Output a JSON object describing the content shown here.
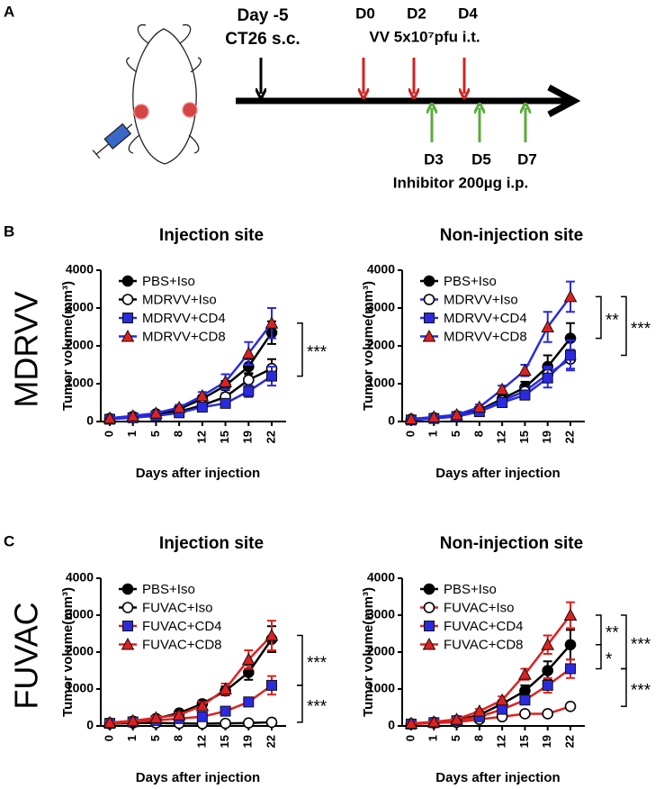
{
  "panels": [
    "A",
    "B",
    "C"
  ],
  "rows": [
    "MDRVV",
    "FUVAC"
  ],
  "timeline": {
    "day_minus5": "Day -5",
    "ct26": "CT26 s.c.",
    "d0": "D0",
    "d2": "D2",
    "d4": "D4",
    "vv": "VV 5x10⁷pfu i.t.",
    "d3": "D3",
    "d5": "D5",
    "d7": "D7",
    "inhibitor": "Inhibitor 200µg i.p."
  },
  "chart_data": [
    {
      "type": "line",
      "title": "Injection site",
      "x_label": "Days after injection",
      "y_label": "Tumor volume(mm³)",
      "categories": [
        "0",
        "1",
        "5",
        "8",
        "12",
        "15",
        "19",
        "22"
      ],
      "ylim": [
        0,
        4000
      ],
      "yticks": [
        0,
        1000,
        2000,
        3000,
        4000
      ],
      "annotations": [
        "***"
      ],
      "series": [
        {
          "name": "PBS+Iso",
          "color": "#000000",
          "marker": "circle",
          "marker_color": "#000000",
          "values": [
            80,
            130,
            200,
            330,
            600,
            950,
            1450,
            2350
          ],
          "errors": [
            20,
            30,
            40,
            60,
            90,
            120,
            200,
            300
          ]
        },
        {
          "name": "MDRVV+Iso",
          "color": "#000000",
          "marker": "circle-open",
          "marker_color": "#ffffff",
          "values": [
            70,
            110,
            170,
            260,
            430,
            650,
            1100,
            1400
          ],
          "errors": [
            20,
            30,
            40,
            50,
            80,
            100,
            180,
            250
          ]
        },
        {
          "name": "MDRVV+CD4",
          "color": "#2a2ae0",
          "marker": "square",
          "marker_color": "#2a2ae0",
          "values": [
            60,
            100,
            150,
            230,
            380,
            480,
            800,
            1200
          ],
          "errors": [
            20,
            30,
            40,
            50,
            70,
            90,
            150,
            250
          ]
        },
        {
          "name": "MDRVV+CD8",
          "color": "#2a2ae0",
          "marker": "triangle",
          "marker_color": "#e02020",
          "values": [
            90,
            150,
            220,
            370,
            680,
            1050,
            1800,
            2600
          ],
          "errors": [
            20,
            30,
            50,
            70,
            100,
            200,
            300,
            400
          ]
        }
      ]
    },
    {
      "type": "line",
      "title": "Non-injection site",
      "x_label": "Days after injection",
      "y_label": "Tumor volume(mm³)",
      "categories": [
        "0",
        "1",
        "5",
        "8",
        "12",
        "15",
        "19",
        "22"
      ],
      "ylim": [
        0,
        4000
      ],
      "yticks": [
        0,
        1000,
        2000,
        3000,
        4000
      ],
      "annotations": [
        "**",
        "***"
      ],
      "series": [
        {
          "name": "PBS+Iso",
          "color": "#000000",
          "marker": "circle",
          "marker_color": "#000000",
          "values": [
            60,
            100,
            150,
            300,
            600,
            900,
            1450,
            2200
          ],
          "errors": [
            20,
            30,
            40,
            60,
            90,
            150,
            300,
            400
          ]
        },
        {
          "name": "MDRVV+Iso",
          "color": "#2a2ae0",
          "marker": "circle-open",
          "marker_color": "#ffffff",
          "values": [
            50,
            90,
            140,
            280,
            550,
            800,
            1250,
            1650
          ],
          "errors": [
            20,
            30,
            40,
            60,
            80,
            120,
            200,
            250
          ]
        },
        {
          "name": "MDRVV+CD4",
          "color": "#2a2ae0",
          "marker": "square",
          "marker_color": "#2a2ae0",
          "values": [
            40,
            80,
            130,
            260,
            500,
            700,
            1150,
            1750
          ],
          "errors": [
            20,
            30,
            40,
            60,
            80,
            120,
            250,
            400
          ]
        },
        {
          "name": "MDRVV+CD8",
          "color": "#2a2ae0",
          "marker": "triangle",
          "marker_color": "#e02020",
          "values": [
            70,
            120,
            180,
            380,
            850,
            1350,
            2500,
            3300
          ],
          "errors": [
            20,
            30,
            50,
            70,
            100,
            150,
            400,
            400
          ]
        }
      ]
    },
    {
      "type": "line",
      "title": "Injection site",
      "x_label": "Days after injection",
      "y_label": "Tumor volume(mm³)",
      "categories": [
        "0",
        "1",
        "5",
        "8",
        "12",
        "15",
        "19",
        "22"
      ],
      "ylim": [
        0,
        4000
      ],
      "yticks": [
        0,
        1000,
        2000,
        3000,
        4000
      ],
      "annotations": [
        "***",
        "***"
      ],
      "series": [
        {
          "name": "PBS+Iso",
          "color": "#000000",
          "marker": "circle",
          "marker_color": "#000000",
          "values": [
            80,
            130,
            200,
            350,
            600,
            950,
            1450,
            2350
          ],
          "errors": [
            20,
            30,
            40,
            60,
            90,
            120,
            200,
            350
          ]
        },
        {
          "name": "FUVAC+Iso",
          "color": "#000000",
          "marker": "circle-open",
          "marker_color": "#ffffff",
          "values": [
            60,
            80,
            80,
            70,
            60,
            70,
            80,
            100
          ],
          "errors": [
            10,
            10,
            10,
            10,
            10,
            10,
            20,
            20
          ]
        },
        {
          "name": "FUVAC+CD4",
          "color": "#e02020",
          "marker": "square",
          "marker_color": "#2a2ae0",
          "values": [
            70,
            110,
            150,
            200,
            250,
            400,
            650,
            1100
          ],
          "errors": [
            20,
            30,
            40,
            50,
            60,
            80,
            120,
            250
          ]
        },
        {
          "name": "FUVAC+CD8",
          "color": "#e02020",
          "marker": "triangle",
          "marker_color": "#e02020",
          "values": [
            90,
            140,
            220,
            300,
            550,
            1000,
            1800,
            2450
          ],
          "errors": [
            20,
            30,
            50,
            60,
            100,
            150,
            250,
            400
          ]
        }
      ]
    },
    {
      "type": "line",
      "title": "Non-injection site",
      "x_label": "Days after injection",
      "y_label": "Tumor volume(mm³)",
      "categories": [
        "0",
        "1",
        "5",
        "8",
        "12",
        "15",
        "19",
        "22"
      ],
      "ylim": [
        0,
        4000
      ],
      "yticks": [
        0,
        1000,
        2000,
        3000,
        4000
      ],
      "annotations": [
        "**",
        "*",
        "***",
        "***"
      ],
      "series": [
        {
          "name": "PBS+Iso",
          "color": "#000000",
          "marker": "circle",
          "marker_color": "#000000",
          "values": [
            60,
            100,
            150,
            300,
            600,
            950,
            1500,
            2200
          ],
          "errors": [
            20,
            30,
            40,
            60,
            90,
            150,
            250,
            400
          ]
        },
        {
          "name": "FUVAC+Iso",
          "color": "#e02020",
          "marker": "circle-open",
          "marker_color": "#ffffff",
          "values": [
            50,
            80,
            100,
            180,
            250,
            330,
            330,
            530
          ],
          "errors": [
            10,
            20,
            20,
            30,
            40,
            50,
            60,
            80
          ]
        },
        {
          "name": "FUVAC+CD4",
          "color": "#e02020",
          "marker": "square",
          "marker_color": "#2a2ae0",
          "values": [
            50,
            90,
            140,
            250,
            450,
            700,
            1100,
            1550
          ],
          "errors": [
            20,
            30,
            40,
            50,
            70,
            100,
            200,
            250
          ]
        },
        {
          "name": "FUVAC+CD8",
          "color": "#e02020",
          "marker": "triangle",
          "marker_color": "#e02020",
          "values": [
            70,
            110,
            180,
            400,
            700,
            1400,
            2200,
            3000
          ],
          "errors": [
            20,
            30,
            40,
            60,
            100,
            150,
            250,
            350
          ]
        }
      ]
    }
  ]
}
